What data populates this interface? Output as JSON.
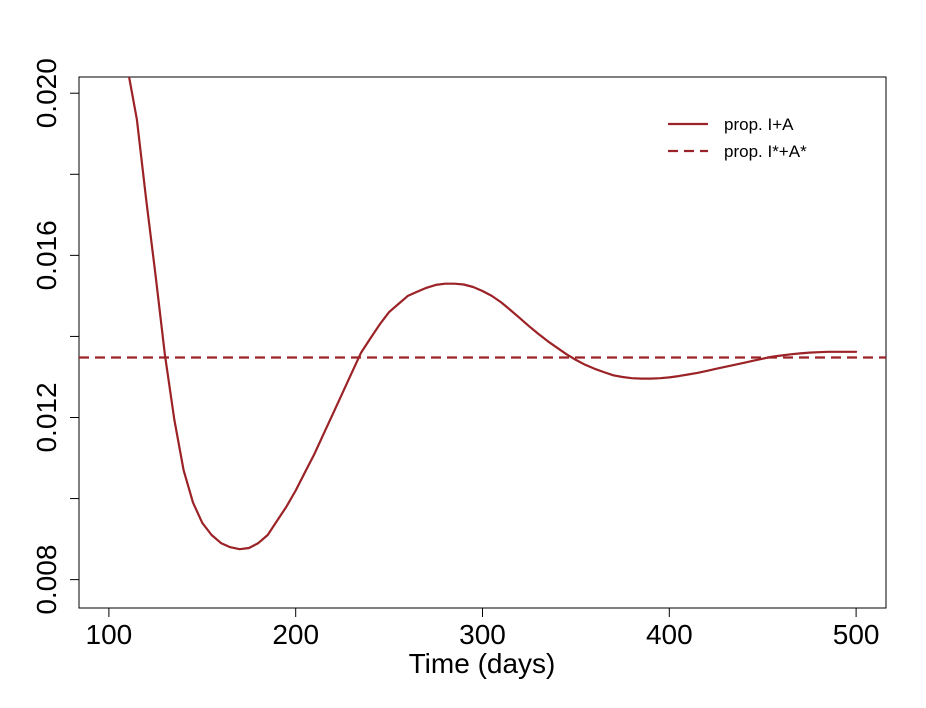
{
  "chart_data": {
    "type": "line",
    "title": "",
    "xlabel": "Time (days)",
    "ylabel": "",
    "xlim": [
      84,
      516
    ],
    "ylim": [
      0.0073,
      0.0204
    ],
    "x_ticks": [
      100,
      200,
      300,
      400,
      500
    ],
    "x_tick_labels": [
      "100",
      "200",
      "300",
      "400",
      "500"
    ],
    "y_ticks": [
      0.008,
      0.01,
      0.012,
      0.014,
      0.016,
      0.018,
      0.02
    ],
    "y_tick_labels": [
      "0.008",
      "",
      "0.012",
      "",
      "0.016",
      "",
      "0.020"
    ],
    "legend_position": "top-right",
    "colors": {
      "series": "#9b2226"
    },
    "series": [
      {
        "name": "prop. I+A",
        "style": "solid",
        "x": [
          110,
          115,
          120,
          125,
          130,
          135,
          140,
          145,
          150,
          155,
          160,
          165,
          170,
          175,
          180,
          185,
          190,
          195,
          200,
          205,
          210,
          215,
          220,
          225,
          230,
          235,
          240,
          245,
          250,
          255,
          260,
          265,
          270,
          275,
          280,
          285,
          290,
          295,
          300,
          305,
          310,
          315,
          320,
          325,
          330,
          335,
          340,
          345,
          350,
          355,
          360,
          365,
          370,
          375,
          380,
          385,
          390,
          395,
          400,
          405,
          410,
          415,
          420,
          425,
          430,
          435,
          440,
          445,
          450,
          455,
          460,
          465,
          470,
          475,
          480,
          485,
          490,
          495,
          500
        ],
        "y": [
          0.0206,
          0.01935,
          0.01735,
          0.0155,
          0.01355,
          0.01195,
          0.0107,
          0.0099,
          0.0094,
          0.0091,
          0.0089,
          0.0088,
          0.00875,
          0.00878,
          0.0089,
          0.0091,
          0.00945,
          0.0098,
          0.0102,
          0.01065,
          0.0111,
          0.0116,
          0.0121,
          0.0126,
          0.0131,
          0.0136,
          0.01395,
          0.0143,
          0.0146,
          0.0148,
          0.015,
          0.0151,
          0.0152,
          0.01527,
          0.0153,
          0.0153,
          0.01528,
          0.01522,
          0.01512,
          0.015,
          0.01484,
          0.01465,
          0.01445,
          0.01425,
          0.01406,
          0.01388,
          0.01372,
          0.01356,
          0.01342,
          0.0133,
          0.0132,
          0.01312,
          0.01304,
          0.013,
          0.01297,
          0.01296,
          0.01296,
          0.01297,
          0.01299,
          0.01302,
          0.01306,
          0.0131,
          0.01315,
          0.0132,
          0.01325,
          0.0133,
          0.01335,
          0.0134,
          0.01345,
          0.0135,
          0.01353,
          0.01356,
          0.01358,
          0.0136,
          0.01361,
          0.01362,
          0.01362,
          0.01362,
          0.01362
        ]
      },
      {
        "name": "prop. I*+A*",
        "style": "dashed",
        "x": [
          84,
          516
        ],
        "y": [
          0.01348,
          0.01348
        ]
      }
    ]
  }
}
